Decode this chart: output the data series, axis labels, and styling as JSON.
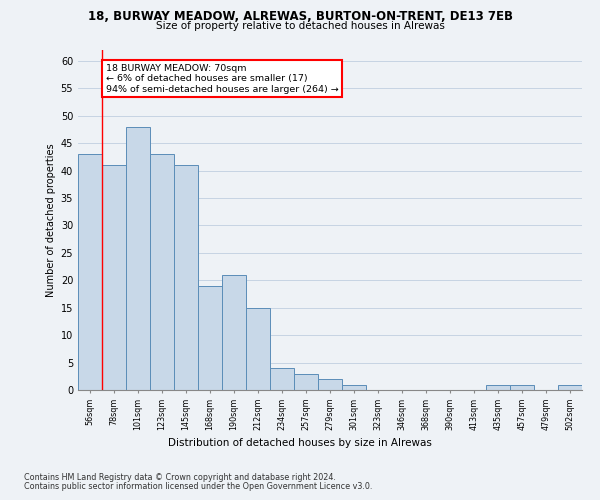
{
  "title_line1": "18, BURWAY MEADOW, ALREWAS, BURTON-ON-TRENT, DE13 7EB",
  "title_line2": "Size of property relative to detached houses in Alrewas",
  "xlabel": "Distribution of detached houses by size in Alrewas",
  "ylabel": "Number of detached properties",
  "categories": [
    "56sqm",
    "78sqm",
    "101sqm",
    "123sqm",
    "145sqm",
    "168sqm",
    "190sqm",
    "212sqm",
    "234sqm",
    "257sqm",
    "279sqm",
    "301sqm",
    "323sqm",
    "346sqm",
    "368sqm",
    "390sqm",
    "413sqm",
    "435sqm",
    "457sqm",
    "479sqm",
    "502sqm"
  ],
  "values": [
    43,
    41,
    48,
    43,
    41,
    19,
    21,
    15,
    4,
    3,
    2,
    1,
    0,
    0,
    0,
    0,
    0,
    1,
    1,
    0,
    1
  ],
  "bar_color": "#c8d8e8",
  "bar_edge_color": "#5b8db8",
  "property_line_x": 0.5,
  "annotation_text": "18 BURWAY MEADOW: 70sqm\n← 6% of detached houses are smaller (17)\n94% of semi-detached houses are larger (264) →",
  "annotation_box_color": "white",
  "annotation_box_edge_color": "red",
  "vline_color": "red",
  "ylim": [
    0,
    62
  ],
  "yticks": [
    0,
    5,
    10,
    15,
    20,
    25,
    30,
    35,
    40,
    45,
    50,
    55,
    60
  ],
  "footer_line1": "Contains HM Land Registry data © Crown copyright and database right 2024.",
  "footer_line2": "Contains public sector information licensed under the Open Government Licence v3.0.",
  "background_color": "#eef2f6",
  "plot_bg_color": "#eef2f6",
  "grid_color": "#c0cfe0"
}
